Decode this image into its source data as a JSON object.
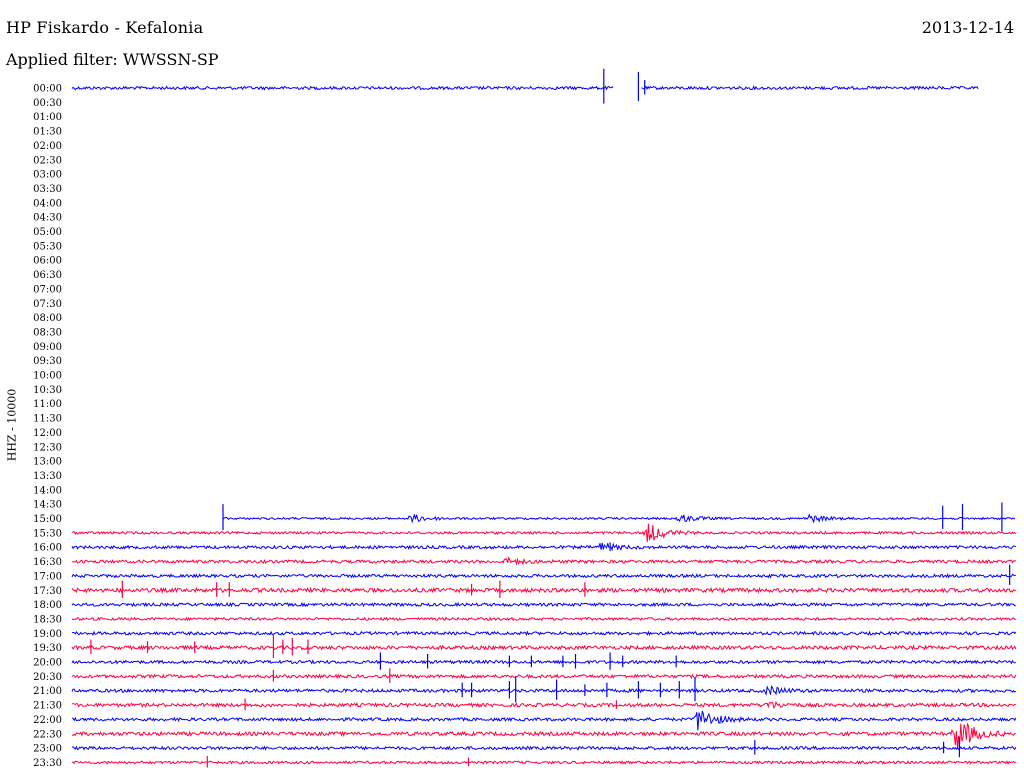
{
  "header": {
    "station": "HP Fiskardo - Kefalonia",
    "date": "2013-12-14",
    "filter": "Applied filter: WWSSN-SP",
    "channel": "HHZ - 10000"
  },
  "chart_data": {
    "type": "line",
    "title": "HP Fiskardo - Kefalonia",
    "subtitle": "Applied filter: WWSSN-SP",
    "ylabel": "HHZ - 10000",
    "x_unit": "minutes past row start",
    "xlim": [
      0,
      30
    ],
    "colors": {
      "odd": "#0000ff",
      "even": "#ff0040"
    },
    "y_tick_labels": [
      "00:00",
      "00:30",
      "01:00",
      "01:30",
      "02:00",
      "02:30",
      "03:00",
      "03:30",
      "04:00",
      "04:30",
      "05:00",
      "05:30",
      "06:00",
      "06:30",
      "07:00",
      "07:30",
      "08:00",
      "08:30",
      "09:00",
      "09:30",
      "10:00",
      "10:30",
      "11:00",
      "11:30",
      "12:00",
      "12:30",
      "13:00",
      "13:30",
      "14:00",
      "14:30",
      "15:00",
      "15:30",
      "16:00",
      "16:30",
      "17:00",
      "17:30",
      "18:00",
      "18:30",
      "19:00",
      "19:30",
      "20:00",
      "20:30",
      "21:00",
      "21:30",
      "22:00",
      "22:30",
      "23:00",
      "23:30"
    ],
    "traces": [
      {
        "row": "00:00",
        "color": "blue",
        "segments": [
          [
            0,
            17.2
          ],
          [
            18.1,
            28.8
          ]
        ],
        "noise": 1.5,
        "spikes": [
          [
            16.9,
            12
          ],
          [
            18.0,
            10
          ],
          [
            18.2,
            5
          ]
        ],
        "events": []
      },
      {
        "row": "15:00",
        "color": "blue",
        "segments": [
          [
            4.8,
            30
          ]
        ],
        "noise": 1.0,
        "spikes": [
          [
            4.8,
            9
          ],
          [
            30.9,
            8
          ],
          [
            31.6,
            9
          ],
          [
            33.0,
            10
          ]
        ],
        "events": [
          [
            10.8,
            4
          ],
          [
            19.3,
            4
          ],
          [
            23.4,
            4
          ]
        ]
      },
      {
        "row": "15:30",
        "color": "red",
        "segments": [
          [
            0,
            30
          ]
        ],
        "noise": 1.2,
        "spikes": [],
        "events": [
          [
            18.3,
            10
          ]
        ]
      },
      {
        "row": "16:00",
        "color": "blue",
        "segments": [
          [
            0,
            30
          ]
        ],
        "noise": 1.5,
        "spikes": [
          [
            17.1,
            3
          ]
        ],
        "events": [
          [
            16.8,
            4
          ]
        ]
      },
      {
        "row": "16:30",
        "color": "red",
        "segments": [
          [
            0,
            30
          ]
        ],
        "noise": 1.5,
        "spikes": [],
        "events": [
          [
            13.8,
            3
          ]
        ]
      },
      {
        "row": "17:00",
        "color": "blue",
        "segments": [
          [
            0,
            30
          ]
        ],
        "noise": 1.5,
        "spikes": [
          [
            29.8,
            7
          ]
        ],
        "events": []
      },
      {
        "row": "17:30",
        "color": "red",
        "segments": [
          [
            0,
            30
          ]
        ],
        "noise": 2.0,
        "spikes": [
          [
            1.6,
            6
          ],
          [
            4.6,
            5
          ],
          [
            5.0,
            5
          ],
          [
            12.7,
            4
          ],
          [
            13.6,
            6
          ],
          [
            16.3,
            5
          ]
        ],
        "events": []
      },
      {
        "row": "18:00",
        "color": "blue",
        "segments": [
          [
            0,
            30
          ]
        ],
        "noise": 1.5,
        "spikes": [],
        "events": []
      },
      {
        "row": "18:30",
        "color": "red",
        "segments": [
          [
            0,
            30
          ]
        ],
        "noise": 1.3,
        "spikes": [],
        "events": []
      },
      {
        "row": "19:00",
        "color": "blue",
        "segments": [
          [
            0,
            30
          ]
        ],
        "noise": 1.5,
        "spikes": [],
        "events": []
      },
      {
        "row": "19:30",
        "color": "red",
        "segments": [
          [
            0,
            30
          ]
        ],
        "noise": 1.8,
        "spikes": [
          [
            0.6,
            5
          ],
          [
            2.4,
            4
          ],
          [
            3.9,
            4
          ],
          [
            6.4,
            8
          ],
          [
            6.7,
            5
          ],
          [
            7.0,
            6
          ],
          [
            7.5,
            5
          ]
        ],
        "events": []
      },
      {
        "row": "20:00",
        "color": "blue",
        "segments": [
          [
            0,
            30
          ]
        ],
        "noise": 1.5,
        "spikes": [
          [
            9.8,
            6
          ],
          [
            11.3,
            5
          ],
          [
            13.9,
            4
          ],
          [
            14.6,
            4
          ],
          [
            15.6,
            4
          ],
          [
            16.0,
            5
          ],
          [
            17.1,
            6
          ],
          [
            17.5,
            4
          ],
          [
            19.2,
            4
          ]
        ],
        "events": []
      },
      {
        "row": "20:30",
        "color": "red",
        "segments": [
          [
            0,
            30
          ]
        ],
        "noise": 1.6,
        "spikes": [
          [
            6.4,
            4
          ],
          [
            10.1,
            5
          ]
        ],
        "events": []
      },
      {
        "row": "21:00",
        "color": "blue",
        "segments": [
          [
            0,
            30
          ]
        ],
        "noise": 1.6,
        "spikes": [
          [
            12.4,
            5
          ],
          [
            12.7,
            5
          ],
          [
            13.9,
            6
          ],
          [
            14.1,
            9
          ],
          [
            15.4,
            7
          ],
          [
            16.3,
            4
          ],
          [
            17.0,
            5
          ],
          [
            18.0,
            6
          ],
          [
            18.7,
            5
          ],
          [
            19.3,
            6
          ],
          [
            19.8,
            8
          ]
        ],
        "events": [
          [
            22.1,
            4
          ]
        ]
      },
      {
        "row": "21:30",
        "color": "red",
        "segments": [
          [
            0,
            30
          ]
        ],
        "noise": 1.7,
        "spikes": [
          [
            5.5,
            4
          ],
          [
            17.3,
            3
          ]
        ],
        "events": [
          [
            22.1,
            3
          ]
        ]
      },
      {
        "row": "22:00",
        "color": "blue",
        "segments": [
          [
            0,
            30
          ]
        ],
        "noise": 1.5,
        "spikes": [],
        "events": [
          [
            19.9,
            12
          ]
        ]
      },
      {
        "row": "22:30",
        "color": "red",
        "segments": [
          [
            0,
            30
          ]
        ],
        "noise": 1.8,
        "spikes": [],
        "events": [
          [
            28.1,
            18
          ]
        ]
      },
      {
        "row": "23:00",
        "color": "blue",
        "segments": [
          [
            0,
            30
          ]
        ],
        "noise": 1.5,
        "spikes": [
          [
            21.7,
            5
          ],
          [
            27.7,
            4
          ],
          [
            28.2,
            7
          ]
        ],
        "events": []
      },
      {
        "row": "23:30",
        "color": "red",
        "segments": [
          [
            0,
            30
          ]
        ],
        "noise": 1.3,
        "spikes": [
          [
            4.3,
            4
          ],
          [
            12.6,
            3
          ]
        ],
        "events": []
      }
    ]
  }
}
